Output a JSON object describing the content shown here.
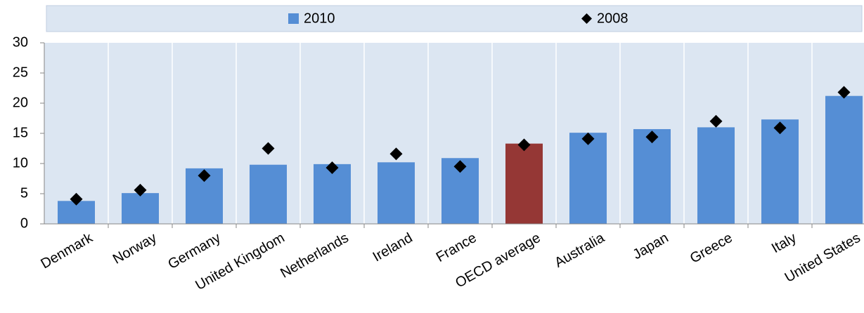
{
  "chart_data": {
    "type": "bar",
    "categories": [
      "Denmark",
      "Norway",
      "Germany",
      "United Kingdom",
      "Netherlands",
      "Ireland",
      "France",
      "OECD average",
      "Australia",
      "Japan",
      "Greece",
      "Italy",
      "United States"
    ],
    "series": [
      {
        "name": "2010",
        "type": "bar",
        "color": "#558ed5",
        "colors": [
          "#558ed5",
          "#558ed5",
          "#558ed5",
          "#558ed5",
          "#558ed5",
          "#558ed5",
          "#558ed5",
          "#953735",
          "#558ed5",
          "#558ed5",
          "#558ed5",
          "#558ed5",
          "#558ed5"
        ],
        "values": [
          3.8,
          5.1,
          9.2,
          9.8,
          9.9,
          10.2,
          10.9,
          13.3,
          15.1,
          15.7,
          16.0,
          17.3,
          21.2
        ]
      },
      {
        "name": "2008",
        "type": "diamond",
        "color": "#000000",
        "values": [
          4.1,
          5.6,
          8.0,
          12.5,
          9.3,
          11.6,
          9.5,
          13.1,
          14.1,
          14.4,
          17.0,
          15.9,
          21.8
        ]
      }
    ],
    "ylim": [
      0,
      30
    ],
    "yticks": [
      0,
      5,
      10,
      15,
      20,
      25,
      30
    ]
  }
}
